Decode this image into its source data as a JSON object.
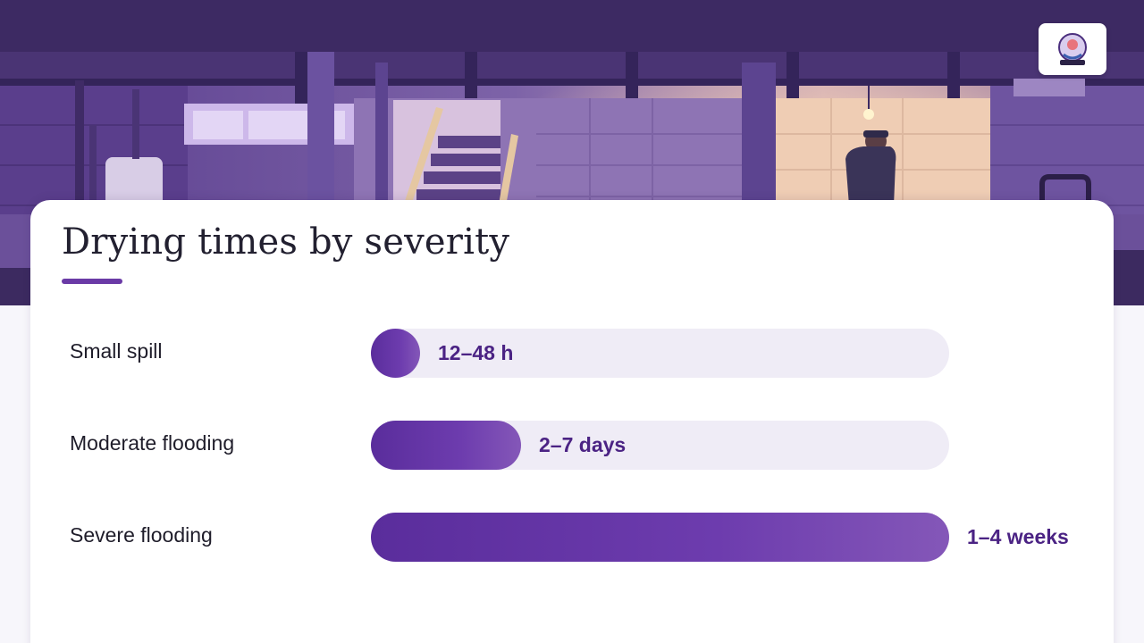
{
  "page": {
    "title": "Drying times by severity"
  },
  "brand": {
    "accent": "#6a3aa6",
    "track": "#efecf6",
    "logo_icon": "company-logo-icon"
  },
  "chart_data": {
    "type": "bar",
    "orientation": "horizontal",
    "categories": [
      "Small spill",
      "Moderate flooding",
      "Severe flooding"
    ],
    "value_labels": [
      "12–48 h",
      "2–7 days",
      "1–4 weeks"
    ],
    "values": [
      0.085,
      0.26,
      1.0
    ],
    "value_units": "fraction of longest bar",
    "title": "Drying times by severity",
    "grid": false,
    "legend": "none"
  }
}
